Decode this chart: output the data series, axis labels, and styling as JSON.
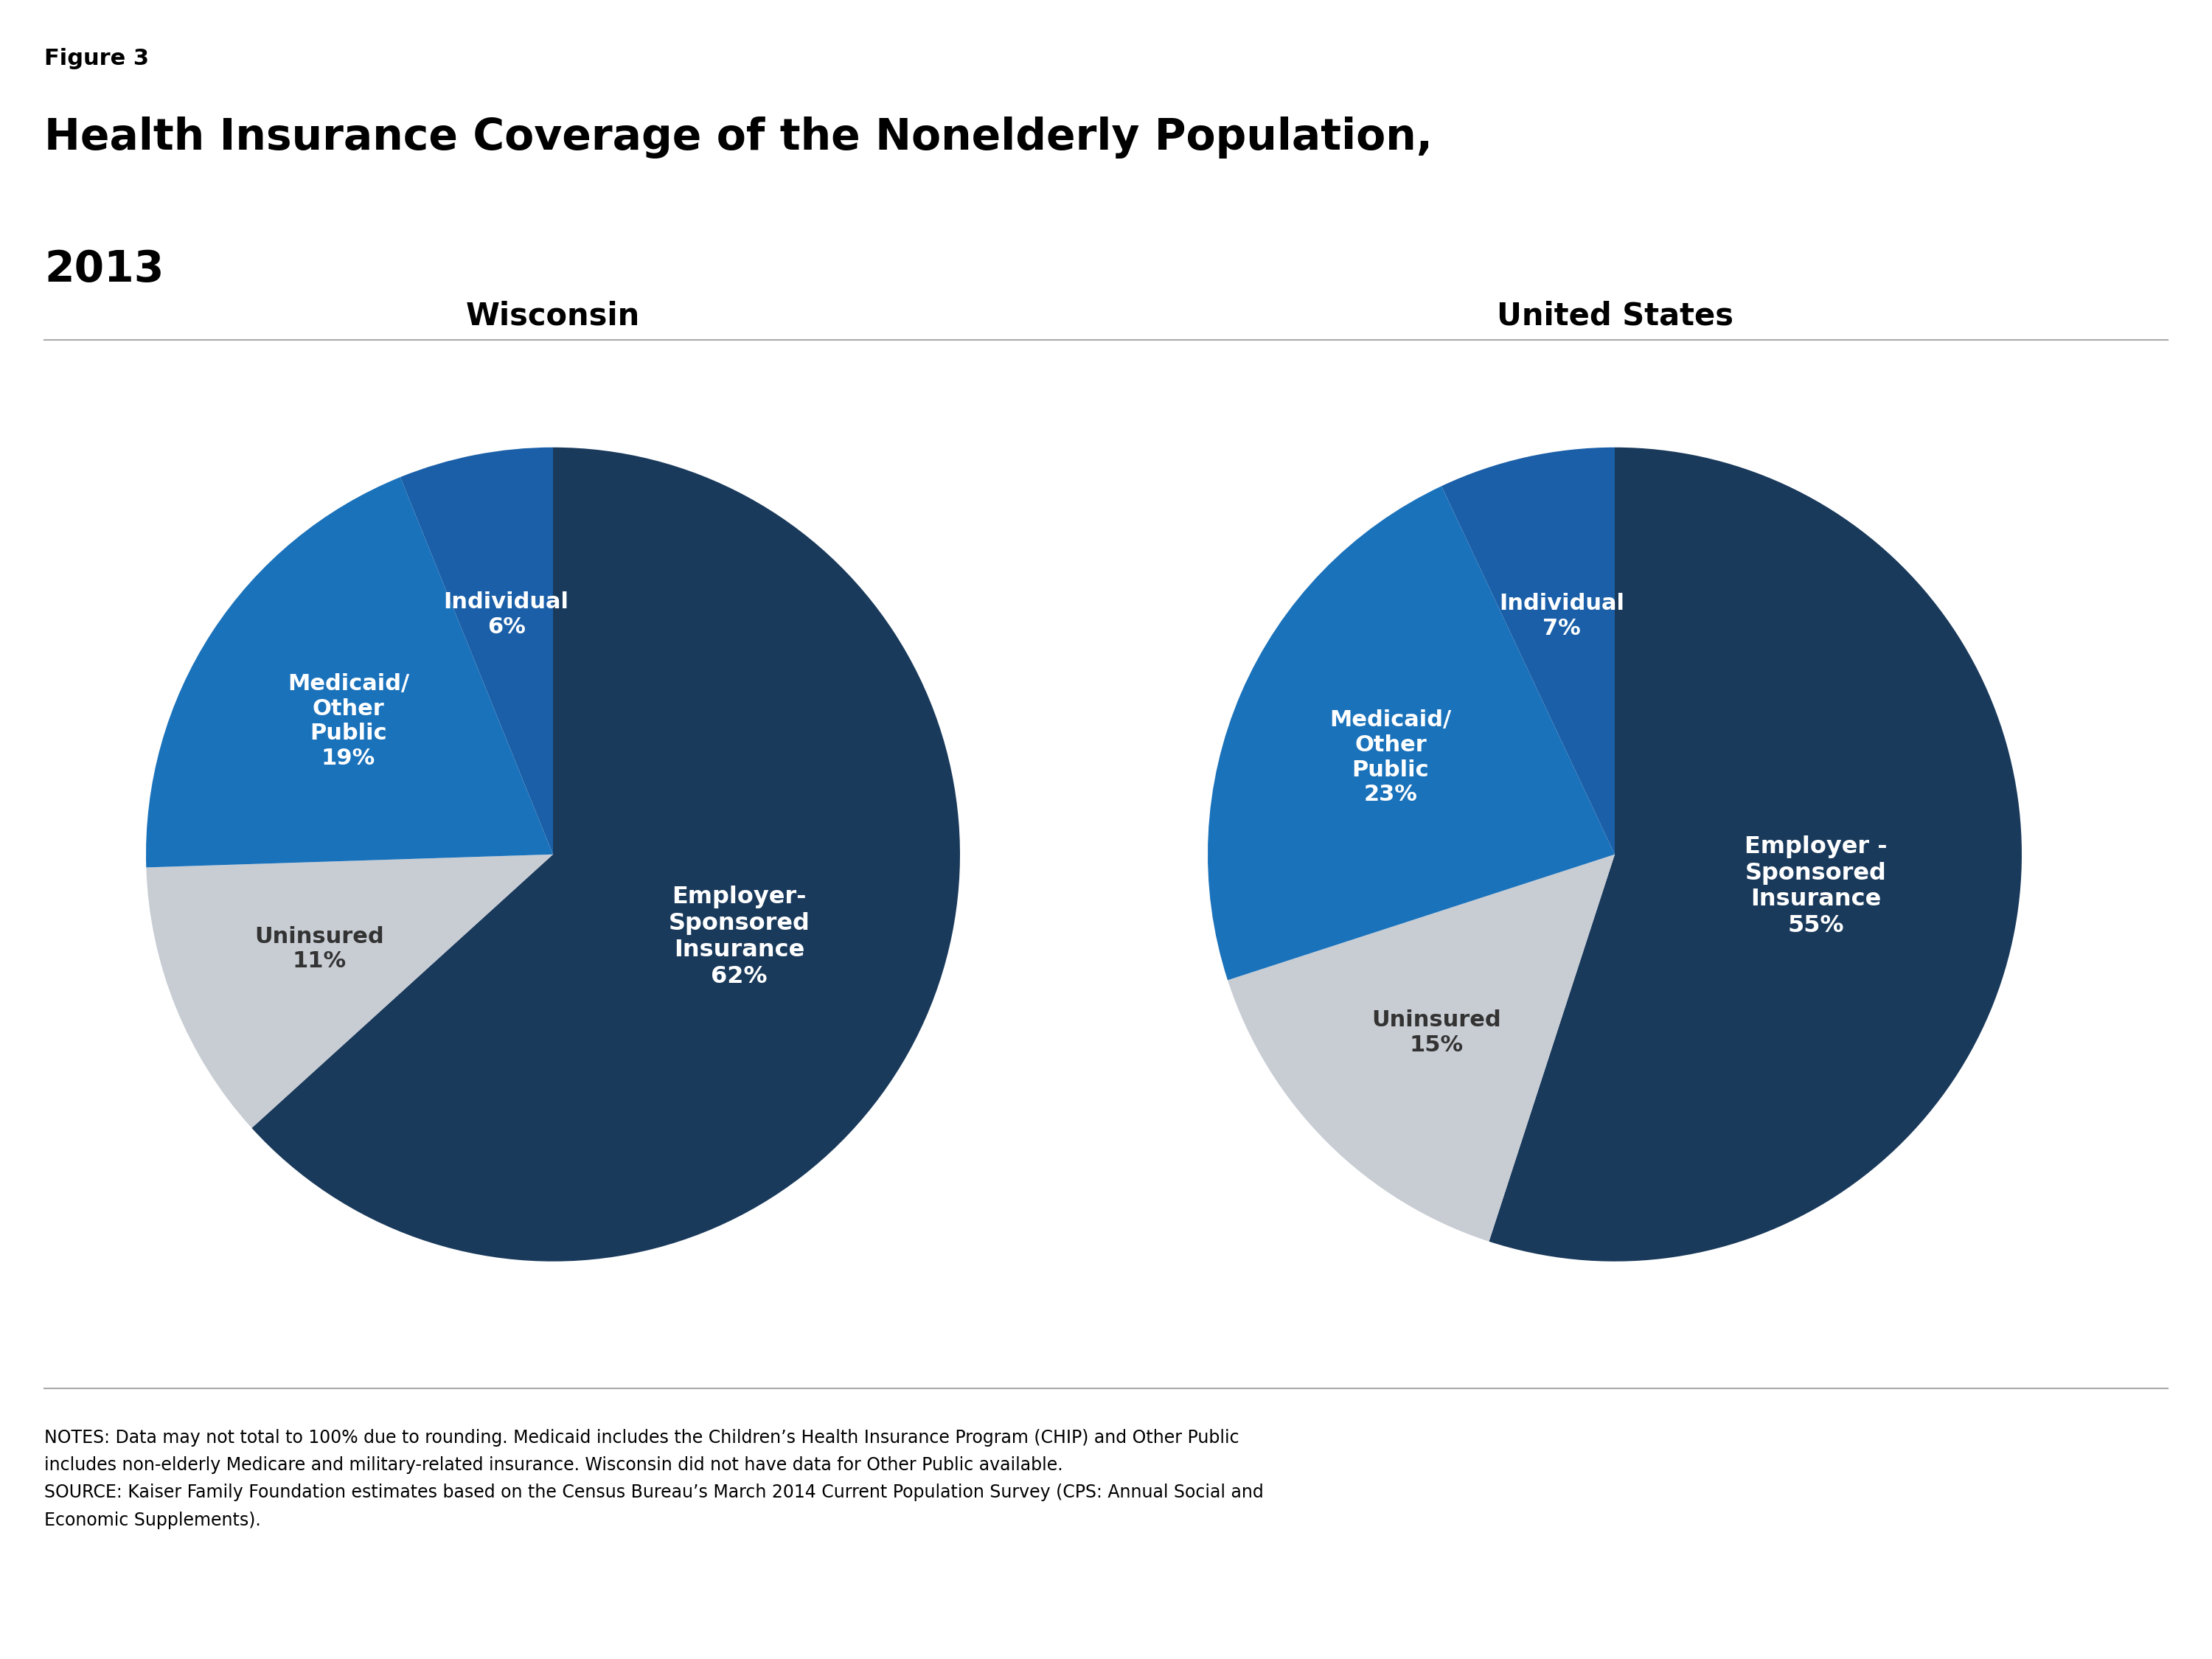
{
  "figure_label": "Figure 3",
  "title_line1": "Health Insurance Coverage of the Nonelderly Population,",
  "title_line2": "2013",
  "wisconsin_title": "Wisconsin",
  "us_title": "United States",
  "wisconsin_values": [
    62,
    11,
    19,
    6
  ],
  "wisconsin_colors": [
    "#1a3a5c",
    "#c8cdd4",
    "#1a72bb",
    "#1a5fa8"
  ],
  "us_values": [
    55,
    15,
    23,
    7
  ],
  "us_colors": [
    "#1a3a5c",
    "#c8cdd4",
    "#1a72bb",
    "#1a5fa8"
  ],
  "notes_line1": "NOTES: Data may not total to 100% due to rounding. Medicaid includes the Children’s Health Insurance Program (CHIP) and Other Public",
  "notes_line2": "includes non-elderly Medicare and military-related insurance. Wisconsin did not have data for Other Public available.",
  "source_line1": "SOURCE: Kaiser Family Foundation estimates based on the Census Bureau’s March 2014 Current Population Survey (CPS: Annual Social and",
  "source_line2": "Economic Supplements).",
  "kff_box_color": "#1a3a5c",
  "background_color": "#ffffff",
  "title_fontsize": 42,
  "figure_label_fontsize": 22,
  "subtitle_fontsize": 30,
  "notes_fontsize": 17
}
